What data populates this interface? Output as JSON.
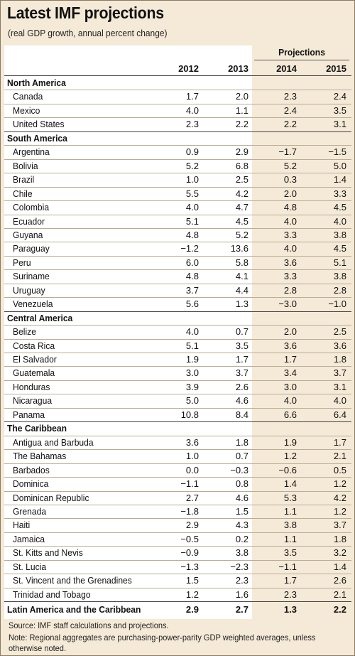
{
  "title": "Latest IMF projections",
  "subtitle": "(real GDP growth, annual percent change)",
  "projections_label": "Projections",
  "years": [
    "2012",
    "2013",
    "2014",
    "2015"
  ],
  "groups": [
    {
      "name": "North America",
      "rows": [
        [
          "Canada",
          "1.7",
          "2.0",
          "2.3",
          "2.4"
        ],
        [
          "Mexico",
          "4.0",
          "1.1",
          "2.4",
          "3.5"
        ],
        [
          "United States",
          "2.3",
          "2.2",
          "2.2",
          "3.1"
        ]
      ]
    },
    {
      "name": "South America",
      "rows": [
        [
          "Argentina",
          "0.9",
          "2.9",
          "−1.7",
          "−1.5"
        ],
        [
          "Bolivia",
          "5.2",
          "6.8",
          "5.2",
          "5.0"
        ],
        [
          "Brazil",
          "1.0",
          "2.5",
          "0.3",
          "1.4"
        ],
        [
          "Chile",
          "5.5",
          "4.2",
          "2.0",
          "3.3"
        ],
        [
          "Colombia",
          "4.0",
          "4.7",
          "4.8",
          "4.5"
        ],
        [
          "Ecuador",
          "5.1",
          "4.5",
          "4.0",
          "4.0"
        ],
        [
          "Guyana",
          "4.8",
          "5.2",
          "3.3",
          "3.8"
        ],
        [
          "Paraguay",
          "−1.2",
          "13.6",
          "4.0",
          "4.5"
        ],
        [
          "Peru",
          "6.0",
          "5.8",
          "3.6",
          "5.1"
        ],
        [
          "Suriname",
          "4.8",
          "4.1",
          "3.3",
          "3.8"
        ],
        [
          "Uruguay",
          "3.7",
          "4.4",
          "2.8",
          "2.8"
        ],
        [
          "Venezuela",
          "5.6",
          "1.3",
          "−3.0",
          "−1.0"
        ]
      ]
    },
    {
      "name": "Central America",
      "rows": [
        [
          "Belize",
          "4.0",
          "0.7",
          "2.0",
          "2.5"
        ],
        [
          "Costa Rica",
          "5.1",
          "3.5",
          "3.6",
          "3.6"
        ],
        [
          "El Salvador",
          "1.9",
          "1.7",
          "1.7",
          "1.8"
        ],
        [
          "Guatemala",
          "3.0",
          "3.7",
          "3.4",
          "3.7"
        ],
        [
          "Honduras",
          "3.9",
          "2.6",
          "3.0",
          "3.1"
        ],
        [
          "Nicaragua",
          "5.0",
          "4.6",
          "4.0",
          "4.0"
        ],
        [
          "Panama",
          "10.8",
          "8.4",
          "6.6",
          "6.4"
        ]
      ]
    },
    {
      "name": "The Caribbean",
      "rows": [
        [
          "Antigua and Barbuda",
          "3.6",
          "1.8",
          "1.9",
          "1.7"
        ],
        [
          "The Bahamas",
          "1.0",
          "0.7",
          "1.2",
          "2.1"
        ],
        [
          "Barbados",
          "0.0",
          "−0.3",
          "−0.6",
          "0.5"
        ],
        [
          "Dominica",
          "−1.1",
          "0.8",
          "1.4",
          "1.2"
        ],
        [
          "Dominican Republic",
          "2.7",
          "4.6",
          "5.3",
          "4.2"
        ],
        [
          "Grenada",
          "−1.8",
          "1.5",
          "1.1",
          "1.2"
        ],
        [
          "Haiti",
          "2.9",
          "4.3",
          "3.8",
          "3.7"
        ],
        [
          "Jamaica",
          "−0.5",
          "0.2",
          "1.1",
          "1.8"
        ],
        [
          "St. Kitts and Nevis",
          "−0.9",
          "3.8",
          "3.5",
          "3.2"
        ],
        [
          "St. Lucia",
          "−1.3",
          "−2.3",
          "−1.1",
          "1.4"
        ],
        [
          "St. Vincent and the Grenadines",
          "1.5",
          "2.3",
          "1.7",
          "2.6"
        ],
        [
          "Trinidad and Tobago",
          "1.2",
          "1.6",
          "2.3",
          "2.1"
        ]
      ]
    }
  ],
  "total": [
    "Latin America and the Caribbean",
    "2.9",
    "2.7",
    "1.3",
    "2.2"
  ],
  "source": "Source: IMF staff calculations and projections.",
  "note": "Note: Regional aggregates are purchasing-power-parity GDP weighted averages, unless otherwise noted.",
  "colors": {
    "background": "#f5ead7",
    "table": "#ffffff",
    "rule": "#b9ad98"
  }
}
